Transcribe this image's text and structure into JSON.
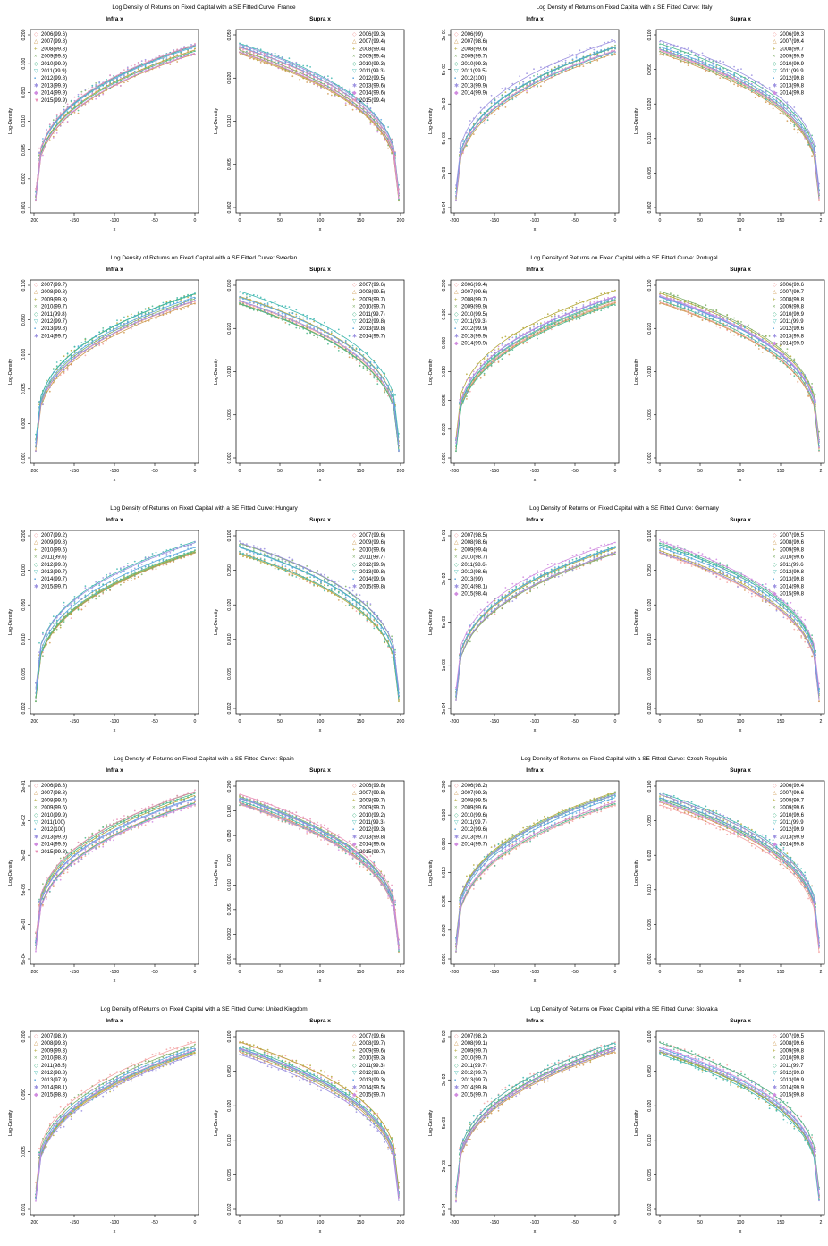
{
  "figure_title_prefix": "Log Density of Returns on Fixed Capital with a SE Fitted Curve: ",
  "colors": [
    "#f4a3a3",
    "#cf9a52",
    "#b5a93a",
    "#7fb069",
    "#4cb88c",
    "#3fb8b0",
    "#5aa7e0",
    "#9a8fe0",
    "#d08be0",
    "#e88fb6"
  ],
  "markers": [
    "◇",
    "△",
    "+",
    "×",
    "◇",
    "▽",
    "▪",
    "✱",
    "◆",
    "▼"
  ],
  "chart_data": [
    {
      "type": "scatter",
      "country": "France",
      "panels": [
        {
          "title": "Infra x",
          "xlabel": "x",
          "ylabel": "Log-Density",
          "xlim": [
            -200,
            0
          ],
          "xticks": [
            "-200",
            "-150",
            "-100",
            "-50",
            "0"
          ],
          "yticks": [
            "0.001",
            "0.002",
            "0.005",
            "0.010",
            "0.050",
            "0.100",
            "0.200"
          ],
          "legend": [
            "2006(99.6)",
            "2007(99.8)",
            "2008(99.8)",
            "2009(99.8)",
            "2010(99.9)",
            "2011(99.9)",
            "2012(99.8)",
            "2013(99.9)",
            "2014(99.9)",
            "2015(99.9)"
          ]
        },
        {
          "title": "Supra x",
          "xlabel": "x",
          "ylabel": "Log-Density",
          "xlim": [
            0,
            200
          ],
          "xticks": [
            "0",
            "50",
            "100",
            "150",
            "200"
          ],
          "yticks": [
            "0.002",
            "0.005",
            "0.010",
            "0.020",
            "0.050"
          ],
          "legend": [
            "2006(99.3)",
            "2007(99.4)",
            "2008(99.4)",
            "2009(99.4)",
            "2010(99.3)",
            "2011(99.3)",
            "2012(99.5)",
            "2013(99.6)",
            "2014(99.6)",
            "2015(99.4)"
          ]
        }
      ]
    },
    {
      "type": "scatter",
      "country": "Italy",
      "panels": [
        {
          "title": "Infra x",
          "xlabel": "x",
          "ylabel": "Log-Density",
          "xlim": [
            -200,
            0
          ],
          "xticks": [
            "-200",
            "-150",
            "-100",
            "-50",
            "0"
          ],
          "yticks": [
            "5e-04",
            "2e-03",
            "5e-03",
            "2e-02",
            "5e-02",
            "2e-01"
          ],
          "legend": [
            "2006(99)",
            "2007(98.6)",
            "2008(99.6)",
            "2009(99.7)",
            "2010(99.3)",
            "2011(99.5)",
            "2012(100)",
            "2013(99.9)",
            "2014(99.9)"
          ]
        },
        {
          "title": "Supra x",
          "xlabel": "x",
          "ylabel": "Log-Density",
          "xlim": [
            0,
            200
          ],
          "xticks": [
            "0",
            "50",
            "100",
            "150",
            "2"
          ],
          "yticks": [
            "0.002",
            "0.005",
            "0.010",
            "0.020",
            "0.050",
            "0.100"
          ],
          "legend": [
            "2006(99.3",
            "2007(99.4",
            "2008(99.7",
            "2009(99.9",
            "2010(99.9",
            "2011(99.9",
            "2012(99.8",
            "2013(99.8",
            "2014(99.8"
          ]
        }
      ]
    },
    {
      "type": "scatter",
      "country": "Sweden",
      "panels": [
        {
          "title": "Infra x",
          "xlabel": "x",
          "ylabel": "Log-Density",
          "xlim": [
            -200,
            0
          ],
          "xticks": [
            "-200",
            "-150",
            "-100",
            "-50",
            "0"
          ],
          "yticks": [
            "0.001",
            "0.002",
            "0.005",
            "0.010",
            "0.050",
            "0.100"
          ],
          "legend": [
            "2007(99.7)",
            "2008(99.8)",
            "2009(99.8)",
            "2010(99.7)",
            "2011(99.8)",
            "2012(99.7)",
            "2013(99.8)",
            "2014(99.7)"
          ]
        },
        {
          "title": "Supra x",
          "xlabel": "x",
          "ylabel": "Log-Density",
          "xlim": [
            0,
            200
          ],
          "xticks": [
            "0",
            "50",
            "100",
            "150",
            "200"
          ],
          "yticks": [
            "0.002",
            "0.005",
            "0.010",
            "0.020",
            "0.050"
          ],
          "legend": [
            "2007(99.6)",
            "2008(99.5)",
            "2009(99.7)",
            "2010(99.7)",
            "2011(99.7)",
            "2012(99.8)",
            "2013(99.8)",
            "2014(99.7)"
          ]
        }
      ]
    },
    {
      "type": "scatter",
      "country": "Portugal",
      "panels": [
        {
          "title": "Infra x",
          "xlabel": "x",
          "ylabel": "Log-Density",
          "xlim": [
            -200,
            0
          ],
          "xticks": [
            "-200",
            "-150",
            "-100",
            "-50",
            "0"
          ],
          "yticks": [
            "0.001",
            "0.002",
            "0.005",
            "0.010",
            "0.050",
            "0.100",
            "0.200"
          ],
          "legend": [
            "2006(99.4)",
            "2007(99.6)",
            "2008(99.7)",
            "2009(99.9)",
            "2010(99.5)",
            "2011(99.3)",
            "2012(99.9)",
            "2013(99.9)",
            "2014(99.9)"
          ]
        },
        {
          "title": "Supra x",
          "xlabel": "x",
          "ylabel": "Log-Density",
          "xlim": [
            0,
            200
          ],
          "xticks": [
            "0",
            "50",
            "100",
            "150",
            "2"
          ],
          "yticks": [
            "0.002",
            "0.005",
            "0.010",
            "0.020",
            "0.100"
          ],
          "legend": [
            "2006(99.6",
            "2007(99.7",
            "2008(99.8",
            "2009(99.8",
            "2010(99.9",
            "2011(99.9",
            "2012(99.6",
            "2013(99.8",
            "2014(99.9"
          ]
        }
      ]
    },
    {
      "type": "scatter",
      "country": "Hungary",
      "panels": [
        {
          "title": "Infra x",
          "xlabel": "x",
          "ylabel": "Log-Density",
          "xlim": [
            -200,
            0
          ],
          "xticks": [
            "-200",
            "-150",
            "-100",
            "-50",
            "0"
          ],
          "yticks": [
            "0.002",
            "0.005",
            "0.010",
            "0.050",
            "0.100",
            "0.200"
          ],
          "legend": [
            "2007(99.2)",
            "2009(99.8)",
            "2010(99.6)",
            "2011(99.6)",
            "2012(99.8)",
            "2013(99.7)",
            "2014(99.7)",
            "2015(99.7)"
          ]
        },
        {
          "title": "Supra x",
          "xlabel": "x",
          "ylabel": "Log-Density",
          "xlim": [
            0,
            200
          ],
          "xticks": [
            "0",
            "50",
            "100",
            "150",
            "200"
          ],
          "yticks": [
            "0.002",
            "0.005",
            "0.010",
            "0.020",
            "0.050",
            "0.100"
          ],
          "legend": [
            "2007(99.6)",
            "2009(99.6)",
            "2010(99.6)",
            "2011(99.7)",
            "2012(99.9)",
            "2013(99.8)",
            "2014(99.9)",
            "2015(99.8)"
          ]
        }
      ]
    },
    {
      "type": "scatter",
      "country": "Germany",
      "panels": [
        {
          "title": "Infra x",
          "xlabel": "x",
          "ylabel": "Log-Density",
          "xlim": [
            -200,
            0
          ],
          "xticks": [
            "-200",
            "-150",
            "-100",
            "-50",
            "0"
          ],
          "yticks": [
            "2e-04",
            "1e-03",
            "5e-03",
            "2e-02",
            "1e-01"
          ],
          "legend": [
            "2007(98.5)",
            "2008(98.6)",
            "2009(99.4)",
            "2010(98.7)",
            "2011(98.6)",
            "2012(98.6)",
            "2013(99)",
            "2014(98.1)",
            "2015(98.4)"
          ]
        },
        {
          "title": "Supra x",
          "xlabel": "x",
          "ylabel": "Log-Density",
          "xlim": [
            0,
            200
          ],
          "xticks": [
            "0",
            "50",
            "100",
            "150",
            "2"
          ],
          "yticks": [
            "0.002",
            "0.005",
            "0.010",
            "0.020",
            "0.050",
            "0.100"
          ],
          "legend": [
            "2007(99.5",
            "2008(99.6",
            "2009(99.8",
            "2010(99.6",
            "2011(99.6",
            "2012(99.8",
            "2013(99.8",
            "2014(99.8",
            "2015(99.8"
          ]
        }
      ]
    },
    {
      "type": "scatter",
      "country": "Spain",
      "panels": [
        {
          "title": "Infra x",
          "xlabel": "x",
          "ylabel": "Log-Density",
          "xlim": [
            -200,
            0
          ],
          "xticks": [
            "-200",
            "-150",
            "-100",
            "-50",
            "0"
          ],
          "yticks": [
            "5e-04",
            "2e-03",
            "5e-03",
            "2e-02",
            "5e-02",
            "2e-01"
          ],
          "legend": [
            "2006(98.8)",
            "2007(98.8)",
            "2008(99.4)",
            "2009(99.6)",
            "2010(99.9)",
            "2011(100)",
            "2012(100)",
            "2013(99.9)",
            "2014(99.9)",
            "2015(99.8)"
          ]
        },
        {
          "title": "Supra x",
          "xlabel": "x",
          "ylabel": "Log-Density",
          "xlim": [
            0,
            200
          ],
          "xticks": [
            "0",
            "50",
            "100",
            "150",
            "200"
          ],
          "yticks": [
            "0.001",
            "0.002",
            "0.005",
            "0.010",
            "0.020",
            "0.050",
            "0.100",
            "0.200"
          ],
          "legend": [
            "2006(99.8)",
            "2007(99.8)",
            "2008(99.7)",
            "2009(99.7)",
            "2010(99.2)",
            "2011(99.3)",
            "2012(99.3)",
            "2013(99.8)",
            "2014(99.6)",
            "2015(99.7)"
          ]
        }
      ]
    },
    {
      "type": "scatter",
      "country": "Czech Republic",
      "panels": [
        {
          "title": "Infra x",
          "xlabel": "x",
          "ylabel": "Log-Density",
          "xlim": [
            -200,
            0
          ],
          "xticks": [
            "-200",
            "-150",
            "-100",
            "-50",
            "0"
          ],
          "yticks": [
            "0.001",
            "0.002",
            "0.005",
            "0.010",
            "0.050",
            "0.100",
            "0.200"
          ],
          "legend": [
            "2006(98.2)",
            "2007(99.3)",
            "2008(99.5)",
            "2009(99.6)",
            "2010(99.6)",
            "2011(99.7)",
            "2012(99.6)",
            "2013(99.7)",
            "2014(99.7)"
          ]
        },
        {
          "title": "Supra x",
          "xlabel": "x",
          "ylabel": "Log-Density",
          "xlim": [
            0,
            200
          ],
          "xticks": [
            "0",
            "50",
            "100",
            "150",
            "2"
          ],
          "yticks": [
            "0.002",
            "0.005",
            "0.010",
            "0.020",
            "0.050",
            "0.100"
          ],
          "legend": [
            "2006(99.4",
            "2007(99.6",
            "2008(99.7",
            "2009(99.6",
            "2010(99.6",
            "2011(99.9",
            "2012(99.9",
            "2013(99.9",
            "2014(99.8"
          ]
        }
      ]
    },
    {
      "type": "scatter",
      "country": "United Kingdom",
      "panels": [
        {
          "title": "Infra x",
          "xlabel": "x",
          "ylabel": "Log-Density",
          "xlim": [
            -200,
            0
          ],
          "xticks": [
            "-200",
            "-150",
            "-100",
            "-50",
            "0"
          ],
          "yticks": [
            "0.001",
            "0.005",
            "0.050",
            "0.200"
          ],
          "legend": [
            "2007(98.9)",
            "2008(99.3)",
            "2009(99.3)",
            "2010(98.8)",
            "2011(98.5)",
            "2012(98.3)",
            "2013(97.9)",
            "2014(98.1)",
            "2015(98.3)"
          ]
        },
        {
          "title": "Supra x",
          "xlabel": "x",
          "ylabel": "Log-Density",
          "xlim": [
            0,
            200
          ],
          "xticks": [
            "0",
            "50",
            "100",
            "150",
            "200"
          ],
          "yticks": [
            "0.002",
            "0.005",
            "0.010",
            "0.020",
            "0.050",
            "0.100"
          ],
          "legend": [
            "2007(99.6)",
            "2008(99.7)",
            "2009(99.6)",
            "2010(99.3)",
            "2011(99.3)",
            "2012(98.8)",
            "2013(99.3)",
            "2014(99.5)",
            "2015(99.7)"
          ]
        }
      ]
    },
    {
      "type": "scatter",
      "country": "Slovakia",
      "panels": [
        {
          "title": "Infra x",
          "xlabel": "x",
          "ylabel": "Log-Density",
          "xlim": [
            -200,
            0
          ],
          "xticks": [
            "-200",
            "-150",
            "-100",
            "-50",
            "0"
          ],
          "yticks": [
            "5e-04",
            "2e-03",
            "5e-03",
            "2e-02",
            "5e-02"
          ],
          "legend": [
            "2007(98.2)",
            "2008(99.1)",
            "2009(99.7)",
            "2010(99.7)",
            "2011(99.7)",
            "2012(99.7)",
            "2013(99.7)",
            "2014(99.8)",
            "2015(99.7)"
          ]
        },
        {
          "title": "Supra x",
          "xlabel": "x",
          "ylabel": "Log-Density",
          "xlim": [
            0,
            200
          ],
          "xticks": [
            "0",
            "50",
            "100",
            "150",
            "2"
          ],
          "yticks": [
            "0.002",
            "0.005",
            "0.010",
            "0.020",
            "0.050",
            "0.100"
          ],
          "legend": [
            "2007(99.5",
            "2008(99.6",
            "2009(99.8",
            "2010(99.8",
            "2011(99.7",
            "2012(99.8",
            "2013(99.9",
            "2014(99.9",
            "2015(99.8"
          ]
        }
      ]
    }
  ]
}
